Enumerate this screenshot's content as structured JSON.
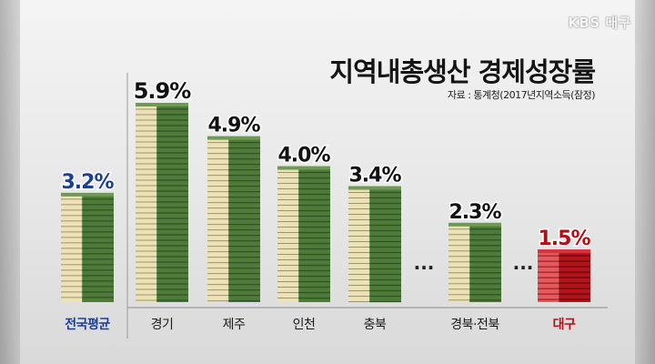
{
  "broadcaster": "KBS 대구",
  "chart_data": {
    "type": "bar",
    "title": "지역내총생산 경제성장률",
    "source": "자료 : 통계청(2017년지역소득(잠정)",
    "categories": [
      "전국평균",
      "경기",
      "제주",
      "인천",
      "충북",
      "경북·전북",
      "대구"
    ],
    "values": [
      3.2,
      5.9,
      4.9,
      4.0,
      3.4,
      2.3,
      1.5
    ],
    "value_labels": [
      "3.2%",
      "5.9%",
      "4.9%",
      "4.0%",
      "3.4%",
      "2.3%",
      "1.5%"
    ],
    "ellipsis": "...",
    "unit": "%",
    "ylim": [
      0,
      6.5
    ],
    "colors": {
      "average_label": "#1d3f8f",
      "default_label": "#111111",
      "highlight_label": "#b10f16",
      "bill_green": "#4e7a3a",
      "bill_green_dark": "#2f5524",
      "bill_cream": "#ece2b6",
      "bill_red": "#b3141b",
      "bill_red_dark": "#6a0a0e"
    },
    "highlight_index": 6,
    "average_index": 0
  }
}
